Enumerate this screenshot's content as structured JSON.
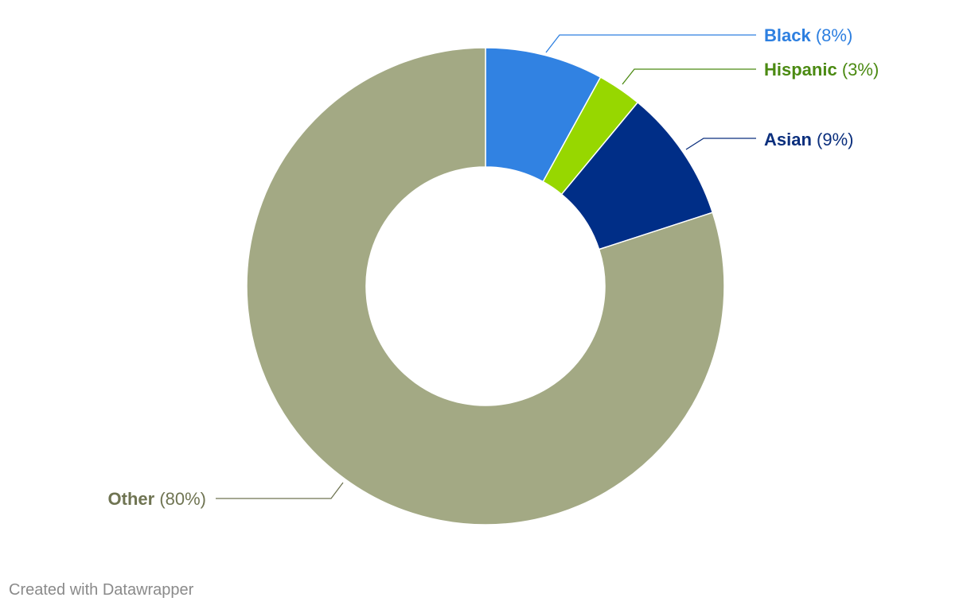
{
  "chart_data": {
    "type": "pie",
    "variant": "donut",
    "slices": [
      {
        "name": "Black",
        "value": 8,
        "value_label": "(8%)",
        "color": "#3182e2",
        "label_color": "#2d7fe0",
        "label_side": "right"
      },
      {
        "name": "Hispanic",
        "value": 3,
        "value_label": "(3%)",
        "color": "#97d700",
        "label_color": "#4b8a12",
        "label_side": "right"
      },
      {
        "name": "Asian",
        "value": 9,
        "value_label": "(9%)",
        "color": "#002e87",
        "label_color": "#0b2f7d",
        "label_side": "right"
      },
      {
        "name": "Other",
        "value": 80,
        "value_label": "(80%)",
        "color": "#a3a984",
        "label_color": "#6f7452",
        "label_side": "left"
      }
    ]
  },
  "footer": {
    "credit": "Created with Datawrapper"
  }
}
